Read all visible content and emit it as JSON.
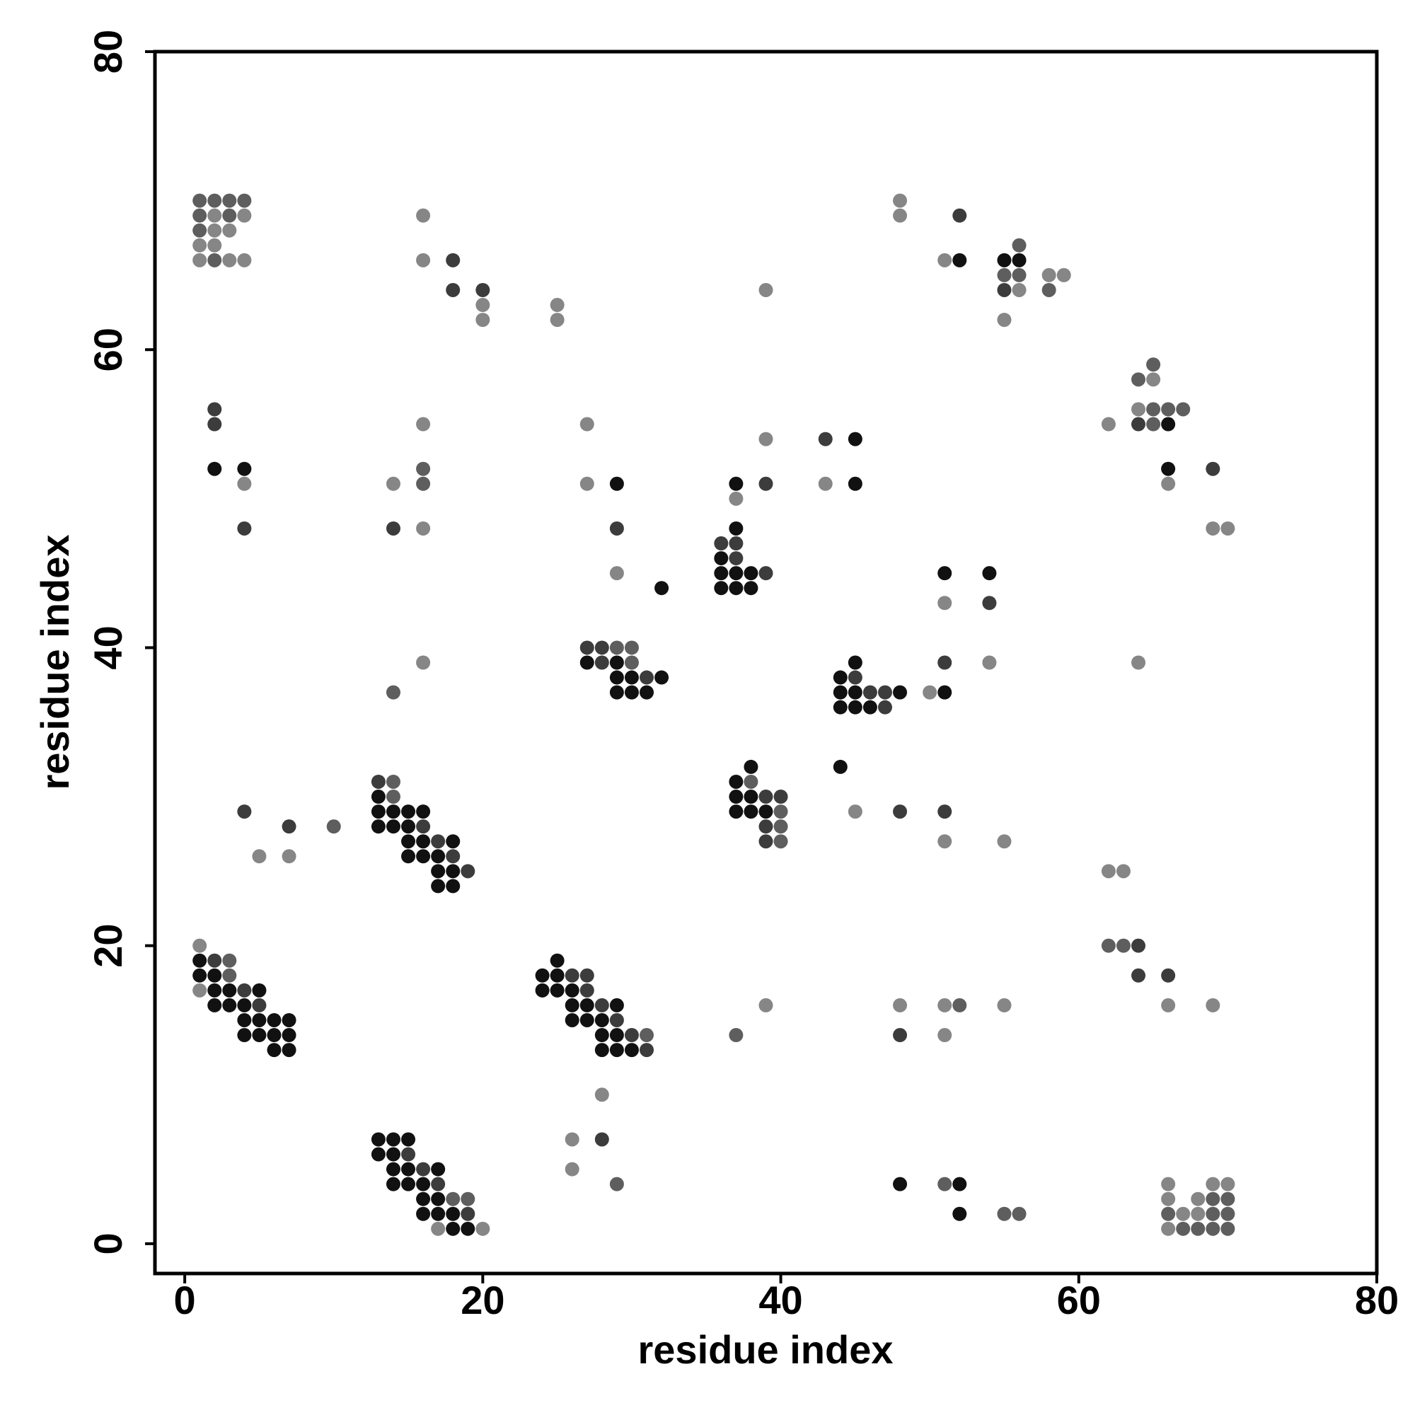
{
  "chart_data": {
    "type": "scatter",
    "xlabel": "residue index",
    "ylabel": "residue index",
    "xlim": [
      -2,
      80
    ],
    "ylim": [
      -2,
      80
    ],
    "xticks": [
      0,
      20,
      40,
      60,
      80
    ],
    "yticks": [
      0,
      20,
      40,
      60,
      80
    ],
    "series": [
      {
        "color": "#111111",
        "x": [
          52,
          55,
          56,
          66,
          66,
          2,
          4,
          29,
          32,
          37,
          45,
          45,
          37,
          36,
          36,
          37,
          38,
          36,
          37,
          38,
          51,
          54,
          27,
          29,
          29,
          30,
          32,
          29,
          30,
          31,
          45,
          44,
          44,
          45,
          48,
          44,
          45,
          46,
          51,
          38,
          37,
          37,
          38,
          37,
          38,
          39,
          44,
          13,
          13,
          14,
          15,
          16,
          13,
          14,
          15,
          15,
          16,
          18,
          15,
          16,
          17,
          17,
          18,
          17,
          18,
          1,
          1,
          2,
          2,
          3,
          5,
          2,
          3,
          4,
          4,
          5,
          6,
          7,
          4,
          5,
          6,
          7,
          6,
          7,
          25,
          24,
          25,
          24,
          25,
          26,
          26,
          27,
          29,
          26,
          27,
          28,
          28,
          29,
          28,
          29,
          30,
          13,
          14,
          15,
          13,
          14,
          14,
          15,
          17,
          14,
          15,
          16,
          16,
          17,
          16,
          17,
          18,
          18,
          19,
          48,
          52,
          52
        ],
        "y": [
          66,
          66,
          66,
          55,
          52,
          52,
          52,
          51,
          44,
          51,
          54,
          51,
          48,
          46,
          45,
          45,
          45,
          44,
          44,
          44,
          45,
          45,
          39,
          39,
          38,
          38,
          38,
          37,
          37,
          37,
          39,
          38,
          37,
          37,
          37,
          36,
          36,
          36,
          37,
          32,
          31,
          30,
          30,
          29,
          29,
          29,
          32,
          30,
          29,
          29,
          29,
          29,
          28,
          28,
          28,
          27,
          27,
          27,
          26,
          26,
          26,
          25,
          25,
          24,
          24,
          19,
          18,
          18,
          17,
          17,
          17,
          16,
          16,
          16,
          15,
          15,
          15,
          15,
          14,
          14,
          14,
          14,
          13,
          13,
          19,
          18,
          18,
          17,
          17,
          17,
          16,
          16,
          16,
          15,
          15,
          15,
          14,
          14,
          13,
          13,
          13,
          7,
          7,
          7,
          6,
          6,
          5,
          5,
          5,
          4,
          4,
          4,
          3,
          3,
          2,
          2,
          2,
          1,
          1,
          4,
          4,
          2
        ]
      },
      {
        "color": "#3c3c3c",
        "x": [
          18,
          18,
          20,
          52,
          55,
          64,
          69,
          2,
          2,
          4,
          14,
          29,
          39,
          43,
          36,
          37,
          37,
          39,
          54,
          51,
          27,
          28,
          28,
          31,
          45,
          46,
          47,
          47,
          39,
          40,
          39,
          39,
          48,
          51,
          4,
          7,
          13,
          16,
          17,
          18,
          19,
          64,
          64,
          66,
          2,
          4,
          5,
          26,
          27,
          27,
          28,
          29,
          30,
          31,
          48,
          28,
          15,
          16,
          17,
          19
        ],
        "y": [
          66,
          64,
          64,
          69,
          64,
          55,
          52,
          56,
          55,
          48,
          48,
          48,
          51,
          54,
          47,
          47,
          46,
          45,
          43,
          39,
          40,
          40,
          39,
          38,
          38,
          37,
          37,
          36,
          30,
          30,
          28,
          27,
          29,
          29,
          29,
          28,
          31,
          28,
          27,
          26,
          25,
          20,
          18,
          18,
          19,
          17,
          16,
          18,
          18,
          17,
          16,
          15,
          14,
          13,
          14,
          7,
          6,
          5,
          4,
          2
        ]
      },
      {
        "color": "#5e5e5e",
        "x": [
          1,
          2,
          3,
          4,
          1,
          3,
          1,
          2,
          56,
          55,
          56,
          58,
          64,
          65,
          65,
          66,
          67,
          65,
          16,
          16,
          14,
          29,
          30,
          30,
          38,
          40,
          40,
          40,
          10,
          14,
          14,
          62,
          63,
          3,
          3,
          31,
          37,
          52,
          29,
          18,
          19,
          51,
          55,
          56,
          69,
          70,
          66,
          69,
          70,
          67,
          68,
          69,
          70
        ],
        "y": [
          70,
          70,
          70,
          70,
          69,
          69,
          68,
          66,
          67,
          65,
          65,
          64,
          58,
          59,
          56,
          56,
          56,
          55,
          52,
          51,
          37,
          40,
          40,
          39,
          31,
          29,
          28,
          27,
          28,
          31,
          30,
          20,
          20,
          19,
          18,
          14,
          14,
          16,
          4,
          3,
          3,
          4,
          2,
          2,
          3,
          3,
          2,
          2,
          2,
          1,
          1,
          1,
          1
        ]
      },
      {
        "color": "#868686",
        "x": [
          2,
          4,
          2,
          3,
          1,
          2,
          1,
          3,
          4,
          16,
          16,
          20,
          20,
          25,
          25,
          39,
          48,
          48,
          51,
          56,
          58,
          59,
          55,
          65,
          64,
          62,
          66,
          69,
          70,
          4,
          14,
          16,
          16,
          27,
          27,
          29,
          37,
          39,
          43,
          51,
          54,
          64,
          16,
          50,
          45,
          51,
          55,
          5,
          7,
          62,
          63,
          66,
          69,
          1,
          1,
          39,
          48,
          51,
          51,
          55,
          28,
          26,
          26,
          17,
          20,
          66,
          69,
          70,
          66,
          68,
          67,
          68,
          66
        ],
        "y": [
          69,
          69,
          68,
          68,
          67,
          67,
          66,
          66,
          66,
          69,
          66,
          63,
          62,
          63,
          62,
          64,
          70,
          69,
          66,
          64,
          65,
          65,
          62,
          58,
          56,
          55,
          51,
          48,
          48,
          51,
          51,
          55,
          48,
          55,
          51,
          45,
          50,
          54,
          51,
          43,
          39,
          39,
          39,
          37,
          29,
          27,
          27,
          26,
          26,
          25,
          25,
          16,
          16,
          20,
          17,
          16,
          16,
          16,
          14,
          16,
          10,
          7,
          5,
          1,
          1,
          4,
          4,
          4,
          3,
          3,
          2,
          2,
          1
        ]
      }
    ]
  }
}
